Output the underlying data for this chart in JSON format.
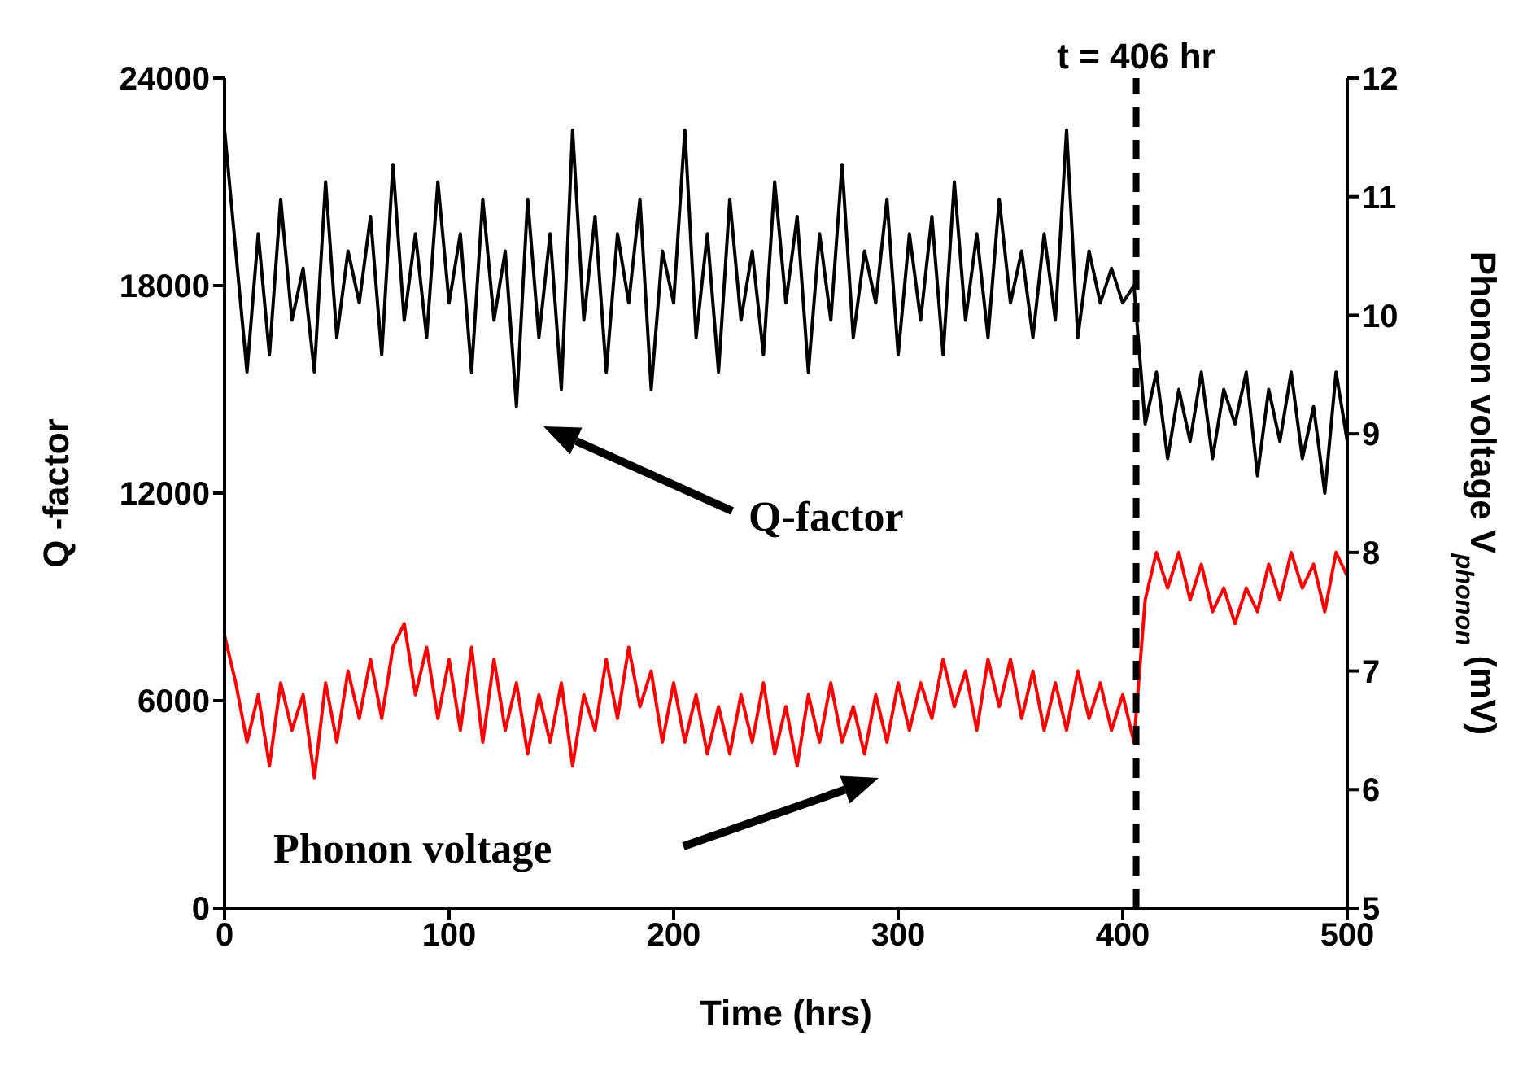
{
  "chart_data": {
    "type": "line",
    "xlabel": "Time (hrs)",
    "ylabel": "Q -factor",
    "y2label": "Phonon voltage V$_{phonon}$ (mV)",
    "x": [
      0,
      5,
      10,
      15,
      20,
      25,
      30,
      35,
      40,
      45,
      50,
      55,
      60,
      65,
      70,
      75,
      80,
      85,
      90,
      95,
      100,
      105,
      110,
      115,
      120,
      125,
      130,
      135,
      140,
      145,
      150,
      155,
      160,
      165,
      170,
      175,
      180,
      185,
      190,
      195,
      200,
      205,
      210,
      215,
      220,
      225,
      230,
      235,
      240,
      245,
      250,
      255,
      260,
      265,
      270,
      275,
      280,
      285,
      290,
      295,
      300,
      305,
      310,
      315,
      320,
      325,
      330,
      335,
      340,
      345,
      350,
      355,
      360,
      365,
      370,
      375,
      380,
      385,
      390,
      395,
      400,
      405,
      410,
      415,
      420,
      425,
      430,
      435,
      440,
      445,
      450,
      455,
      460,
      465,
      470,
      475,
      480,
      485,
      490,
      495,
      500
    ],
    "series": [
      {
        "name": "Q-factor",
        "color": "#000000",
        "values": [
          22500,
          19000,
          15500,
          19500,
          16000,
          20500,
          17000,
          18500,
          15500,
          21000,
          16500,
          19000,
          17500,
          20000,
          16000,
          21500,
          17000,
          19500,
          16500,
          21000,
          17500,
          19500,
          15500,
          20500,
          17000,
          19000,
          14500,
          20500,
          16500,
          19500,
          15000,
          22500,
          17000,
          20000,
          15500,
          19500,
          17500,
          20500,
          15000,
          19000,
          17500,
          22500,
          16500,
          19500,
          15500,
          20500,
          17000,
          19000,
          16000,
          21000,
          17500,
          20000,
          15500,
          19500,
          17000,
          21500,
          16500,
          19000,
          17500,
          20500,
          16000,
          19500,
          17000,
          20000,
          16000,
          21000,
          17000,
          19500,
          16500,
          20500,
          17500,
          19000,
          16500,
          19500,
          17000,
          22500,
          16500,
          19000,
          17500,
          18500,
          17500,
          18000,
          14000,
          15500,
          13000,
          15000,
          13500,
          15500,
          13000,
          15000,
          14000,
          15500,
          12500,
          15000,
          13500,
          15500,
          13000,
          14500,
          12000,
          15500,
          13500
        ]
      },
      {
        "name": "Phonon voltage",
        "color": "#ff0000",
        "axis": "y2",
        "values": [
          7.3,
          6.9,
          6.4,
          6.8,
          6.2,
          6.9,
          6.5,
          6.8,
          6.1,
          6.9,
          6.4,
          7.0,
          6.6,
          7.1,
          6.6,
          7.2,
          7.4,
          6.8,
          7.2,
          6.6,
          7.1,
          6.5,
          7.2,
          6.4,
          7.1,
          6.5,
          6.9,
          6.3,
          6.8,
          6.4,
          6.9,
          6.2,
          6.8,
          6.5,
          7.1,
          6.6,
          7.2,
          6.7,
          7.0,
          6.4,
          6.9,
          6.4,
          6.8,
          6.3,
          6.7,
          6.3,
          6.8,
          6.4,
          6.9,
          6.3,
          6.7,
          6.2,
          6.8,
          6.4,
          6.9,
          6.4,
          6.7,
          6.3,
          6.8,
          6.4,
          6.9,
          6.5,
          6.9,
          6.6,
          7.1,
          6.7,
          7.0,
          6.5,
          7.1,
          6.7,
          7.1,
          6.6,
          7.0,
          6.5,
          6.9,
          6.5,
          7.0,
          6.6,
          6.9,
          6.5,
          6.8,
          6.4,
          7.6,
          8.0,
          7.7,
          8.0,
          7.6,
          7.9,
          7.5,
          7.7,
          7.4,
          7.7,
          7.5,
          7.9,
          7.6,
          8.0,
          7.7,
          7.9,
          7.5,
          8.0,
          7.8
        ]
      }
    ],
    "xlim": [
      0,
      500
    ],
    "xticks": [
      0,
      100,
      200,
      300,
      400,
      500
    ],
    "ylim": [
      0,
      24000
    ],
    "yticks": [
      0,
      6000,
      12000,
      18000,
      24000
    ],
    "y2lim": [
      5,
      12
    ],
    "y2ticks": [
      5,
      6,
      7,
      8,
      9,
      10,
      11,
      12
    ],
    "ref_lines": [
      {
        "axis": "x",
        "value": 406,
        "label": "t = 406 hr",
        "color": "#000000",
        "line_style": "dashed"
      }
    ],
    "grid": false,
    "legend": false,
    "marker": "none",
    "line_style": "solid"
  }
}
